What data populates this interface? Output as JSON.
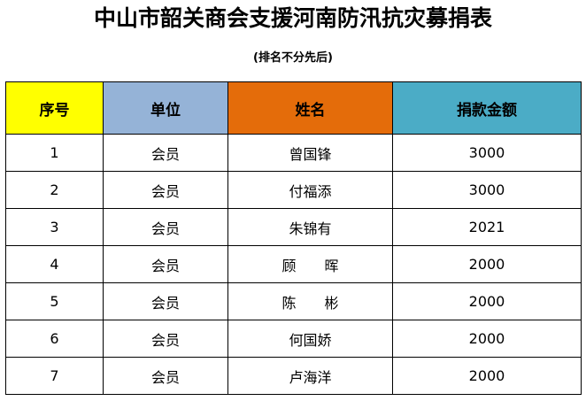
{
  "document": {
    "title": "中山市韶关商会支援河南防汛抗灾募捐表",
    "subtitle": "(排名不分先后)"
  },
  "table": {
    "headers": [
      {
        "label": "序号",
        "color": "#FFFF00"
      },
      {
        "label": "单位",
        "color": "#95B3D7"
      },
      {
        "label": "姓名",
        "color": "#E46C0A"
      },
      {
        "label": "捐款金额",
        "color": "#4BACC6"
      }
    ],
    "rows": [
      {
        "no": "1",
        "unit": "会员",
        "name": "曾国锋",
        "amount": "3000"
      },
      {
        "no": "2",
        "unit": "会员",
        "name": "付福添",
        "amount": "3000"
      },
      {
        "no": "3",
        "unit": "会员",
        "name": "朱锦有",
        "amount": "2021"
      },
      {
        "no": "4",
        "unit": "会员",
        "name": "顾　　晖",
        "amount": "2000"
      },
      {
        "no": "5",
        "unit": "会员",
        "name": "陈　　彬",
        "amount": "2000"
      },
      {
        "no": "6",
        "unit": "会员",
        "name": "何国娇",
        "amount": "2000"
      },
      {
        "no": "7",
        "unit": "会员",
        "name": "卢海洋",
        "amount": "2000"
      }
    ]
  }
}
